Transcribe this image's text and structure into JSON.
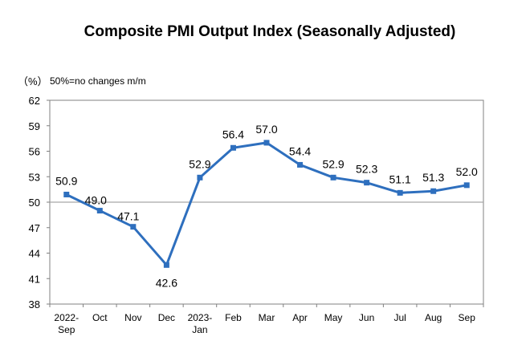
{
  "chart_data": {
    "type": "line",
    "title": "Composite PMI Output Index (Seasonally Adjusted)",
    "unit_label": "（%）",
    "note": "50%=no changes m/m",
    "categories": [
      [
        "2022-",
        "Sep"
      ],
      [
        "Oct"
      ],
      [
        "Nov"
      ],
      [
        "Dec"
      ],
      [
        "2023-",
        "Jan"
      ],
      [
        "Feb"
      ],
      [
        "Mar"
      ],
      [
        "Apr"
      ],
      [
        "May"
      ],
      [
        "Jun"
      ],
      [
        "Jul"
      ],
      [
        "Aug"
      ],
      [
        "Sep"
      ]
    ],
    "values": [
      50.9,
      49.0,
      47.1,
      42.6,
      52.9,
      56.4,
      57.0,
      54.4,
      52.9,
      52.3,
      51.1,
      51.3,
      52.0
    ],
    "data_labels": [
      "50.9",
      "49.0",
      "47.1",
      "42.6",
      "52.9",
      "56.4",
      "57.0",
      "54.4",
      "52.9",
      "52.3",
      "51.1",
      "51.3",
      "52.0"
    ],
    "y_ticks": [
      "62",
      "59",
      "56",
      "53",
      "50",
      "47",
      "44",
      "41",
      "38"
    ],
    "ylim": [
      38,
      62
    ],
    "reference_line": 50,
    "grid": false,
    "legend": "none",
    "colors": {
      "line": "#2e6fbe",
      "reference": "#a6a6a6",
      "axis": "#808080"
    }
  }
}
